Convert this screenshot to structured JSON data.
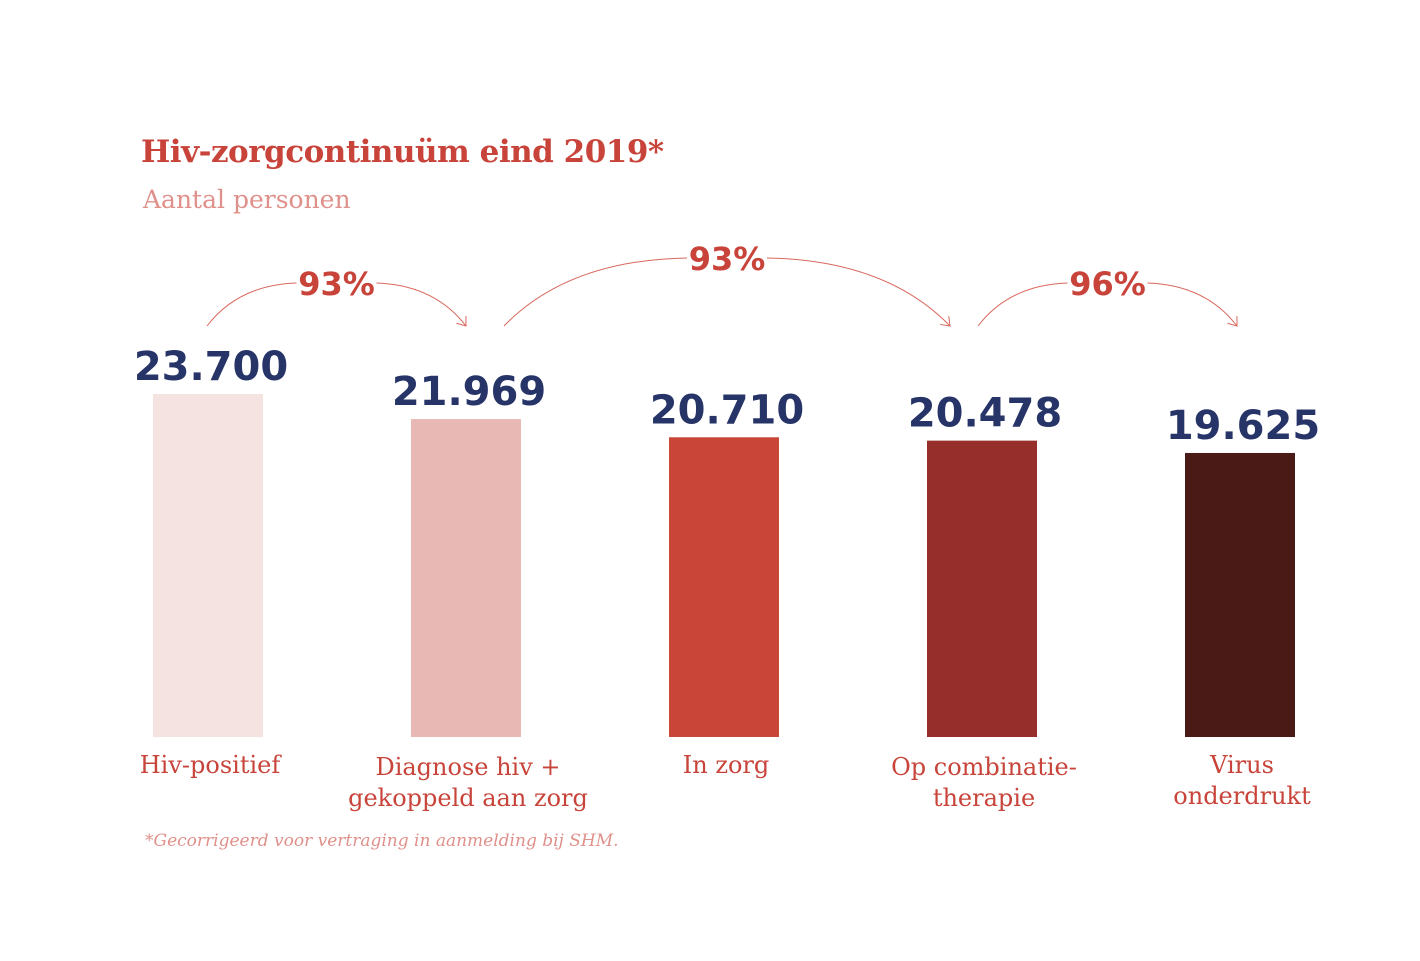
{
  "chart_data": {
    "type": "bar",
    "title": "Hiv-zorgcontinuüm eind 2019*",
    "subtitle": "Aantal personen",
    "categories": [
      [
        "Hiv-positief"
      ],
      [
        "Diagnose hiv +",
        "gekoppeld aan zorg"
      ],
      [
        "In zorg"
      ],
      [
        "Op combinatie-",
        "therapie"
      ],
      [
        "Virus",
        "onderdrukt"
      ]
    ],
    "values": [
      23700,
      21969,
      20710,
      20478,
      19625
    ],
    "value_labels": [
      "23.700",
      "21.969",
      "20.710",
      "20.478",
      "19.625"
    ],
    "colors": [
      "#f5e3e1",
      "#e8b9b4",
      "#c84538",
      "#962f2c",
      "#4a1a16"
    ],
    "transitions": [
      {
        "from": 0,
        "to": 1,
        "label": "93%"
      },
      {
        "from": 1,
        "to": 3,
        "label": "93%"
      },
      {
        "from": 3,
        "to": 4,
        "label": "96%"
      }
    ],
    "ylim": [
      0,
      23700
    ],
    "grid": false,
    "footnote": "*Gecorrigeerd voor vertraging in aanmelding bij SHM."
  }
}
